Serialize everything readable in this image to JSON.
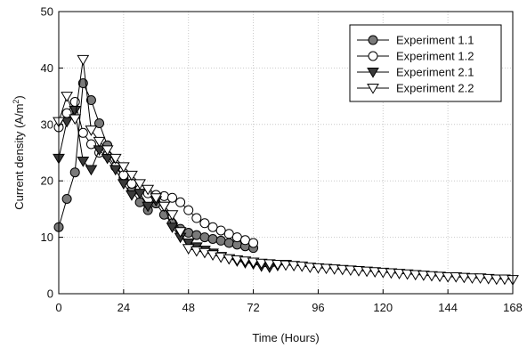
{
  "chart_data": {
    "type": "line",
    "xlabel": "Time (Hours)",
    "ylabel_main": "Current density (A/m",
    "ylabel_sup": "2",
    "ylabel_tail": ")",
    "xlim": [
      0,
      168
    ],
    "ylim": [
      0,
      50
    ],
    "xticks": [
      0,
      24,
      48,
      72,
      96,
      120,
      144,
      168
    ],
    "yticks": [
      0,
      10,
      20,
      30,
      40,
      50
    ],
    "grid": true,
    "legend_position": "top-right",
    "series": [
      {
        "name": "Experiment 1.1",
        "marker": "circle-filled",
        "x": [
          0,
          3,
          6,
          9,
          12,
          15,
          18,
          21,
          24,
          27,
          30,
          33,
          36,
          39,
          42,
          45,
          48,
          51,
          54,
          57,
          60,
          63,
          66,
          69,
          72
        ],
        "y": [
          11.8,
          16.8,
          21.5,
          37.3,
          34.3,
          30.2,
          26.3,
          22.5,
          20.5,
          18.3,
          16.2,
          14.8,
          16.0,
          14.0,
          12.5,
          11.5,
          10.8,
          10.4,
          10.0,
          9.7,
          9.4,
          9.0,
          8.7,
          8.4,
          8.1
        ]
      },
      {
        "name": "Experiment 1.2",
        "marker": "circle-open",
        "x": [
          0,
          3,
          6,
          9,
          12,
          15,
          18,
          21,
          24,
          27,
          30,
          33,
          36,
          39,
          42,
          45,
          48,
          51,
          54,
          57,
          60,
          63,
          66,
          69,
          72
        ],
        "y": [
          29.5,
          32.0,
          34.0,
          28.5,
          26.5,
          25.0,
          24.5,
          22.5,
          21.0,
          19.5,
          18.5,
          17.8,
          17.5,
          17.3,
          17.0,
          16.2,
          14.8,
          13.4,
          12.5,
          11.8,
          11.2,
          10.6,
          10.0,
          9.5,
          9.0
        ]
      },
      {
        "name": "Experiment 2.1",
        "marker": "triangle-down-filled",
        "x": [
          0,
          3,
          6,
          9,
          12,
          15,
          18,
          21,
          24,
          27,
          30,
          33,
          36,
          39,
          42,
          45,
          48,
          51,
          54,
          57,
          60,
          63,
          66,
          69,
          72,
          75,
          78,
          81,
          84
        ],
        "y": [
          24.0,
          30.5,
          32.5,
          23.5,
          22.0,
          25.5,
          24.0,
          22.0,
          19.5,
          17.5,
          17.8,
          15.5,
          16.5,
          15.5,
          11.8,
          10.0,
          9.0,
          8.3,
          7.7,
          7.2,
          6.6,
          6.2,
          5.8,
          5.5,
          5.3,
          4.9,
          4.7,
          5.0,
          5.2
        ]
      },
      {
        "name": "Experiment 2.2",
        "marker": "triangle-down-open",
        "x": [
          0,
          3,
          6,
          9,
          12,
          15,
          18,
          21,
          24,
          27,
          30,
          33,
          36,
          39,
          42,
          45,
          48,
          51,
          54,
          57,
          60,
          63,
          66,
          69,
          72,
          75,
          78,
          81,
          84,
          87,
          90,
          93,
          96,
          99,
          102,
          105,
          108,
          111,
          114,
          117,
          120,
          123,
          126,
          129,
          132,
          135,
          138,
          141,
          144,
          147,
          150,
          153,
          156,
          159,
          162,
          165,
          168
        ],
        "y": [
          30.5,
          35.0,
          31.0,
          41.5,
          29.0,
          27.0,
          25.5,
          24.0,
          22.5,
          21.0,
          19.5,
          18.5,
          17.0,
          15.5,
          14.0,
          11.0,
          8.0,
          7.6,
          7.3,
          6.9,
          6.5,
          6.2,
          6.0,
          5.8,
          5.6,
          5.4,
          5.3,
          5.2,
          5.1,
          5.0,
          4.9,
          4.7,
          4.6,
          4.5,
          4.4,
          4.3,
          4.2,
          4.1,
          4.0,
          3.9,
          3.8,
          3.7,
          3.6,
          3.5,
          3.4,
          3.3,
          3.2,
          3.1,
          3.0,
          3.0,
          2.9,
          2.8,
          2.8,
          2.7,
          2.6,
          2.6,
          2.5
        ]
      }
    ]
  }
}
